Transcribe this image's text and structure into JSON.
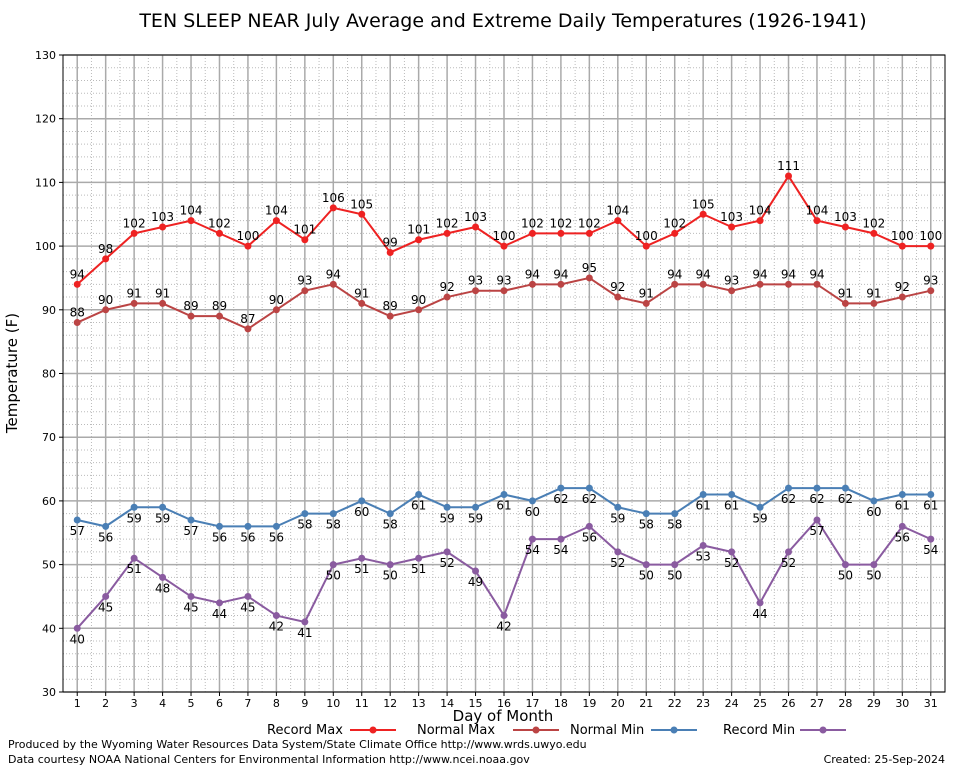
{
  "chart_data": {
    "type": "line",
    "title": "TEN SLEEP NEAR July Average and Extreme Daily Temperatures (1926-1941)",
    "xlabel": "Day of Month",
    "ylabel": "Temperature (F)",
    "ylim": [
      30,
      130
    ],
    "yticks": [
      30,
      40,
      50,
      60,
      70,
      80,
      90,
      100,
      110,
      120,
      130
    ],
    "x": [
      1,
      2,
      3,
      4,
      5,
      6,
      7,
      8,
      9,
      10,
      11,
      12,
      13,
      14,
      15,
      16,
      17,
      18,
      19,
      20,
      21,
      22,
      23,
      24,
      25,
      26,
      27,
      28,
      29,
      30,
      31
    ],
    "grid": true,
    "legend_position": "bottom",
    "series": [
      {
        "name": "Record Max",
        "color": "#ee2222",
        "values": [
          94,
          98,
          102,
          103,
          104,
          102,
          100,
          104,
          101,
          106,
          105,
          99,
          101,
          102,
          103,
          100,
          102,
          102,
          102,
          104,
          100,
          102,
          105,
          103,
          104,
          111,
          104,
          103,
          102,
          100,
          100
        ]
      },
      {
        "name": "Normal Max",
        "color": "#bb4444",
        "values": [
          88,
          90,
          91,
          91,
          89,
          89,
          87,
          90,
          93,
          94,
          91,
          89,
          90,
          92,
          93,
          93,
          94,
          94,
          95,
          92,
          91,
          94,
          94,
          93,
          94,
          94,
          94,
          91,
          91,
          92,
          93
        ]
      },
      {
        "name": "Normal Min",
        "color": "#4a7fb5",
        "values": [
          57,
          56,
          59,
          59,
          57,
          56,
          56,
          56,
          58,
          58,
          60,
          58,
          61,
          59,
          59,
          61,
          60,
          62,
          62,
          59,
          58,
          58,
          61,
          61,
          59,
          62,
          62,
          62,
          60,
          61,
          61
        ]
      },
      {
        "name": "Record Min",
        "color": "#8a5ba0",
        "values": [
          40,
          45,
          51,
          48,
          45,
          44,
          45,
          42,
          41,
          50,
          51,
          50,
          51,
          52,
          49,
          42,
          54,
          54,
          56,
          52,
          50,
          50,
          53,
          52,
          44,
          52,
          57,
          50,
          50,
          56,
          54
        ]
      }
    ]
  },
  "footer": {
    "line1": "Produced by the Wyoming Water Resources Data System/State Climate Office http://www.wrds.uwyo.edu",
    "line2": "Data courtesy NOAA National Centers for Environmental Information http://www.ncei.noaa.gov",
    "created": "Created:  25-Sep-2024"
  }
}
